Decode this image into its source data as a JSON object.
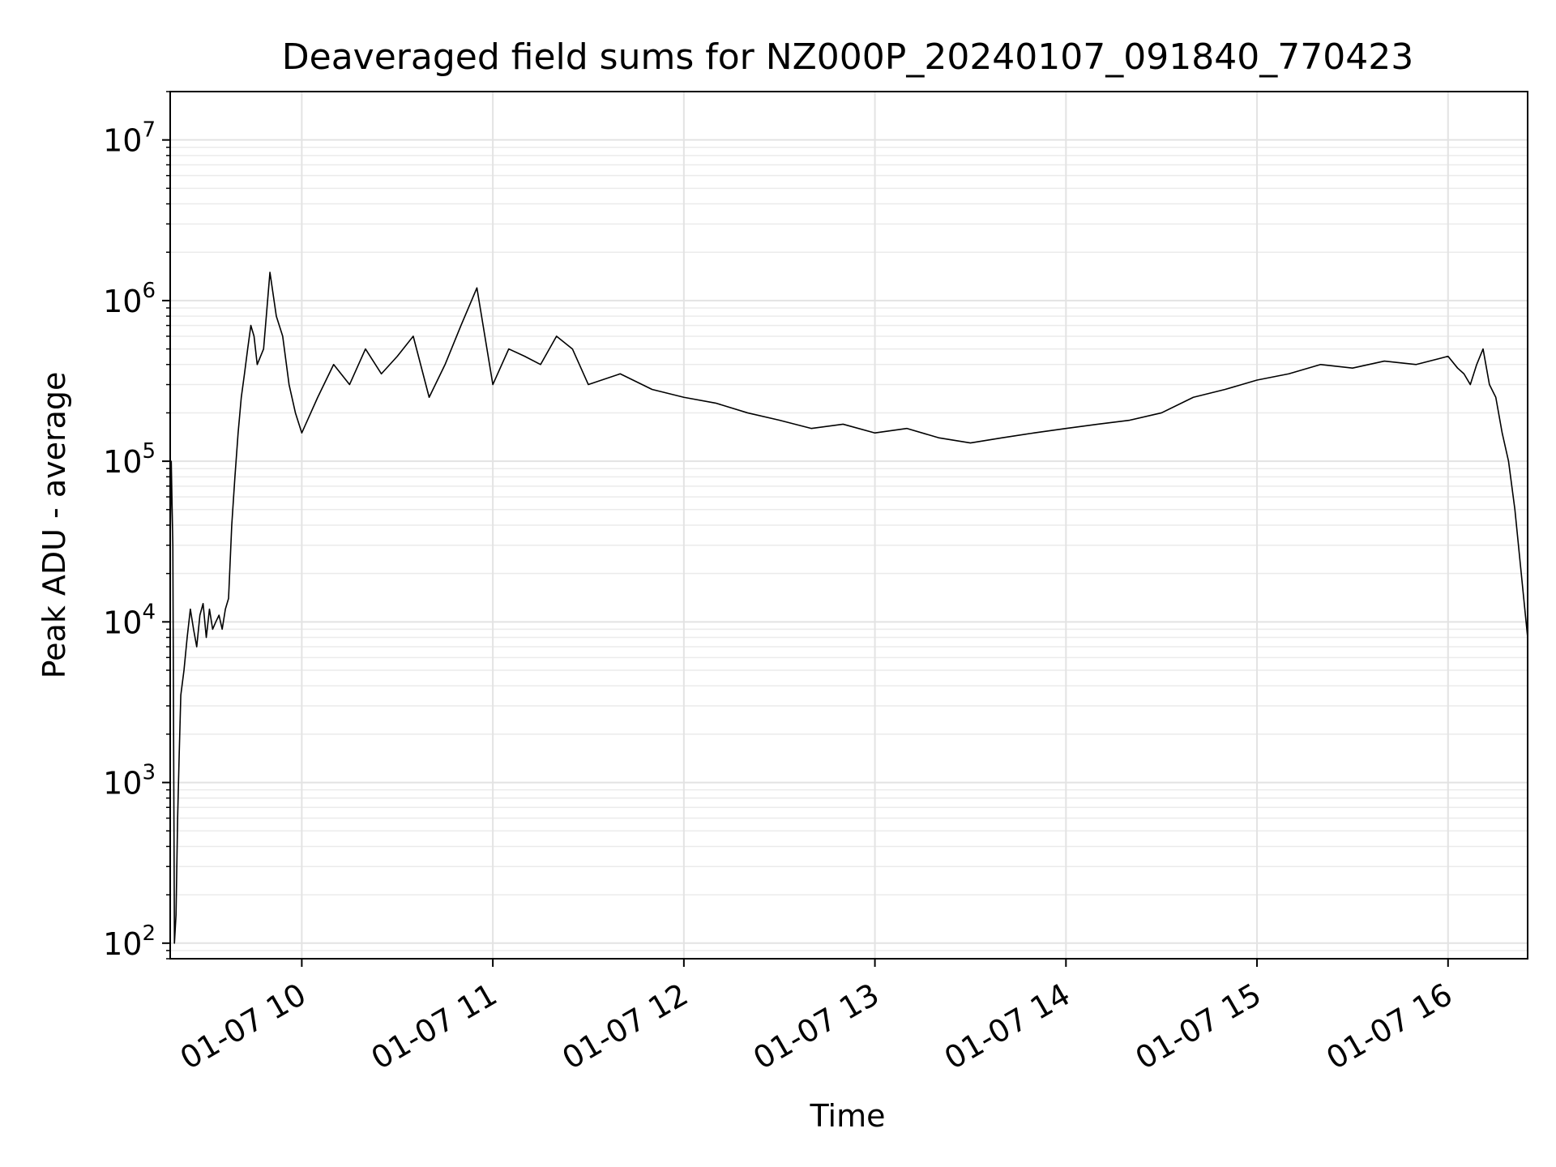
{
  "chart_data": {
    "type": "line",
    "title": "Deaveraged field sums for NZ000P_20240107_091840_770423",
    "xlabel": "Time",
    "ylabel": "Peak ADU - average",
    "yscale": "log",
    "ylim": [
      80,
      20000000
    ],
    "xlim": [
      "2024-01-07T09:18:40",
      "2024-01-07T16:25:00"
    ],
    "grid": true,
    "legend": "none",
    "line_color": "#000000",
    "x_ticks": [
      {
        "value": "2024-01-07T10:00:00",
        "label": "01-07 10"
      },
      {
        "value": "2024-01-07T11:00:00",
        "label": "01-07 11"
      },
      {
        "value": "2024-01-07T12:00:00",
        "label": "01-07 12"
      },
      {
        "value": "2024-01-07T13:00:00",
        "label": "01-07 13"
      },
      {
        "value": "2024-01-07T14:00:00",
        "label": "01-07 14"
      },
      {
        "value": "2024-01-07T15:00:00",
        "label": "01-07 15"
      },
      {
        "value": "2024-01-07T16:00:00",
        "label": "01-07 16"
      }
    ],
    "y_ticks": [
      {
        "value": 100,
        "base": "10",
        "exp": "2"
      },
      {
        "value": 1000,
        "base": "10",
        "exp": "3"
      },
      {
        "value": 10000,
        "base": "10",
        "exp": "4"
      },
      {
        "value": 100000,
        "base": "10",
        "exp": "5"
      },
      {
        "value": 1000000,
        "base": "10",
        "exp": "6"
      },
      {
        "value": 10000000,
        "base": "10",
        "exp": "7"
      }
    ],
    "series": [
      {
        "x": [
          "2024-01-07T09:18:40",
          "2024-01-07T09:19:00",
          "2024-01-07T09:19:30",
          "2024-01-07T09:20:00",
          "2024-01-07T09:20:30",
          "2024-01-07T09:21:00",
          "2024-01-07T09:21:30",
          "2024-01-07T09:22:00",
          "2024-01-07T09:23:00",
          "2024-01-07T09:24:00",
          "2024-01-07T09:25:00",
          "2024-01-07T09:26:00",
          "2024-01-07T09:27:00",
          "2024-01-07T09:28:00",
          "2024-01-07T09:29:00",
          "2024-01-07T09:30:00",
          "2024-01-07T09:31:00",
          "2024-01-07T09:32:00",
          "2024-01-07T09:33:00",
          "2024-01-07T09:34:00",
          "2024-01-07T09:35:00",
          "2024-01-07T09:36:00",
          "2024-01-07T09:37:00",
          "2024-01-07T09:38:00",
          "2024-01-07T09:39:00",
          "2024-01-07T09:40:00",
          "2024-01-07T09:41:00",
          "2024-01-07T09:42:00",
          "2024-01-07T09:43:00",
          "2024-01-07T09:44:00",
          "2024-01-07T09:45:00",
          "2024-01-07T09:46:00",
          "2024-01-07T09:48:00",
          "2024-01-07T09:50:00",
          "2024-01-07T09:52:00",
          "2024-01-07T09:54:00",
          "2024-01-07T09:56:00",
          "2024-01-07T09:58:00",
          "2024-01-07T10:00:00",
          "2024-01-07T10:05:00",
          "2024-01-07T10:10:00",
          "2024-01-07T10:15:00",
          "2024-01-07T10:20:00",
          "2024-01-07T10:25:00",
          "2024-01-07T10:30:00",
          "2024-01-07T10:35:00",
          "2024-01-07T10:40:00",
          "2024-01-07T10:45:00",
          "2024-01-07T10:50:00",
          "2024-01-07T10:55:00",
          "2024-01-07T11:00:00",
          "2024-01-07T11:05:00",
          "2024-01-07T11:10:00",
          "2024-01-07T11:15:00",
          "2024-01-07T11:20:00",
          "2024-01-07T11:25:00",
          "2024-01-07T11:30:00",
          "2024-01-07T11:40:00",
          "2024-01-07T11:50:00",
          "2024-01-07T12:00:00",
          "2024-01-07T12:10:00",
          "2024-01-07T12:20:00",
          "2024-01-07T12:30:00",
          "2024-01-07T12:40:00",
          "2024-01-07T12:50:00",
          "2024-01-07T13:00:00",
          "2024-01-07T13:10:00",
          "2024-01-07T13:20:00",
          "2024-01-07T13:30:00",
          "2024-01-07T13:40:00",
          "2024-01-07T13:50:00",
          "2024-01-07T14:00:00",
          "2024-01-07T14:10:00",
          "2024-01-07T14:20:00",
          "2024-01-07T14:30:00",
          "2024-01-07T14:40:00",
          "2024-01-07T14:50:00",
          "2024-01-07T15:00:00",
          "2024-01-07T15:10:00",
          "2024-01-07T15:20:00",
          "2024-01-07T15:30:00",
          "2024-01-07T15:40:00",
          "2024-01-07T15:50:00",
          "2024-01-07T16:00:00",
          "2024-01-07T16:03:00",
          "2024-01-07T16:05:00",
          "2024-01-07T16:07:00",
          "2024-01-07T16:09:00",
          "2024-01-07T16:11:00",
          "2024-01-07T16:13:00",
          "2024-01-07T16:15:00",
          "2024-01-07T16:17:00",
          "2024-01-07T16:19:00",
          "2024-01-07T16:21:00",
          "2024-01-07T16:23:00",
          "2024-01-07T16:25:00"
        ],
        "y": [
          30000,
          100000,
          30000,
          100,
          150,
          600,
          1500,
          3500,
          5000,
          8000,
          12000,
          9000,
          7000,
          11000,
          13000,
          8000,
          12000,
          9000,
          10000,
          11000,
          9000,
          12000,
          14000,
          40000,
          80000,
          150000,
          250000,
          350000,
          500000,
          700000,
          600000,
          400000,
          500000,
          1500000,
          800000,
          600000,
          300000,
          200000,
          150000,
          250000,
          400000,
          300000,
          500000,
          350000,
          450000,
          600000,
          250000,
          400000,
          700000,
          1200000,
          300000,
          500000,
          450000,
          400000,
          600000,
          500000,
          300000,
          350000,
          280000,
          250000,
          230000,
          200000,
          180000,
          160000,
          170000,
          150000,
          160000,
          140000,
          130000,
          140000,
          150000,
          160000,
          170000,
          180000,
          200000,
          250000,
          280000,
          320000,
          350000,
          400000,
          380000,
          420000,
          400000,
          450000,
          380000,
          350000,
          300000,
          400000,
          500000,
          300000,
          250000,
          150000,
          100000,
          50000,
          20000,
          8000
        ]
      }
    ]
  }
}
